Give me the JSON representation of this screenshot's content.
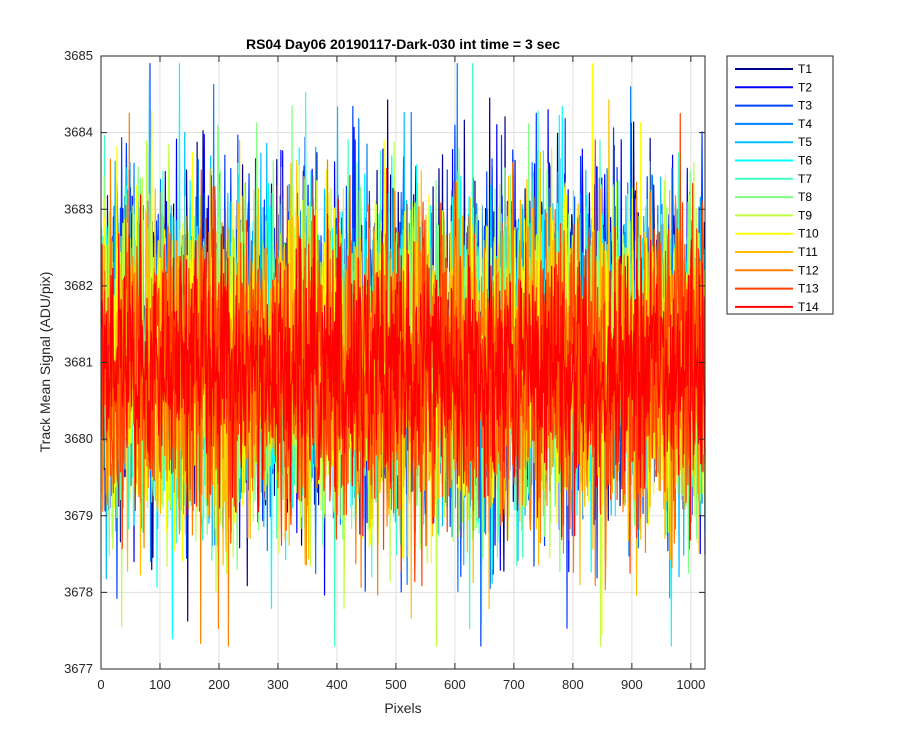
{
  "chart_data": {
    "type": "line",
    "title": "RS04 Day06 20190117-Dark-030 int time = 3 sec",
    "xlabel": "Pixels",
    "ylabel": "Track Mean Signal (ADU/pix)",
    "xlim": [
      0,
      1024
    ],
    "ylim": [
      3677,
      3685
    ],
    "x_ticks": [
      0,
      100,
      200,
      300,
      400,
      500,
      600,
      700,
      800,
      900,
      1000
    ],
    "y_ticks": [
      3677,
      3678,
      3679,
      3680,
      3681,
      3682,
      3683,
      3684,
      3685
    ],
    "grid": true,
    "legend_position": "outside-top-right",
    "x_points": 1024,
    "noise_mean": 3681.0,
    "noise_range": [
      3677.3,
      3684.9
    ],
    "series": [
      {
        "name": "T1",
        "color": "#00008f",
        "mean": 3681.3,
        "spread": 1.05
      },
      {
        "name": "T2",
        "color": "#0000ff",
        "mean": 3681.2,
        "spread": 1.05
      },
      {
        "name": "T3",
        "color": "#0040ff",
        "mean": 3681.2,
        "spread": 1.05
      },
      {
        "name": "T4",
        "color": "#0080ff",
        "mean": 3681.1,
        "spread": 1.05
      },
      {
        "name": "T5",
        "color": "#00bfff",
        "mean": 3681.1,
        "spread": 1.05
      },
      {
        "name": "T6",
        "color": "#00ffff",
        "mean": 3681.1,
        "spread": 1.05
      },
      {
        "name": "T7",
        "color": "#40ffbf",
        "mean": 3681.0,
        "spread": 1.05
      },
      {
        "name": "T8",
        "color": "#80ff80",
        "mean": 3681.0,
        "spread": 1.05
      },
      {
        "name": "T9",
        "color": "#bfff40",
        "mean": 3681.0,
        "spread": 1.05
      },
      {
        "name": "T10",
        "color": "#ffff00",
        "mean": 3681.0,
        "spread": 1.05
      },
      {
        "name": "T11",
        "color": "#ffbf00",
        "mean": 3680.9,
        "spread": 1.05
      },
      {
        "name": "T12",
        "color": "#ff8000",
        "mean": 3680.9,
        "spread": 1.0
      },
      {
        "name": "T13",
        "color": "#ff4000",
        "mean": 3680.9,
        "spread": 1.0
      },
      {
        "name": "T14",
        "color": "#ff0000",
        "mean": 3680.9,
        "spread": 0.75
      }
    ]
  }
}
